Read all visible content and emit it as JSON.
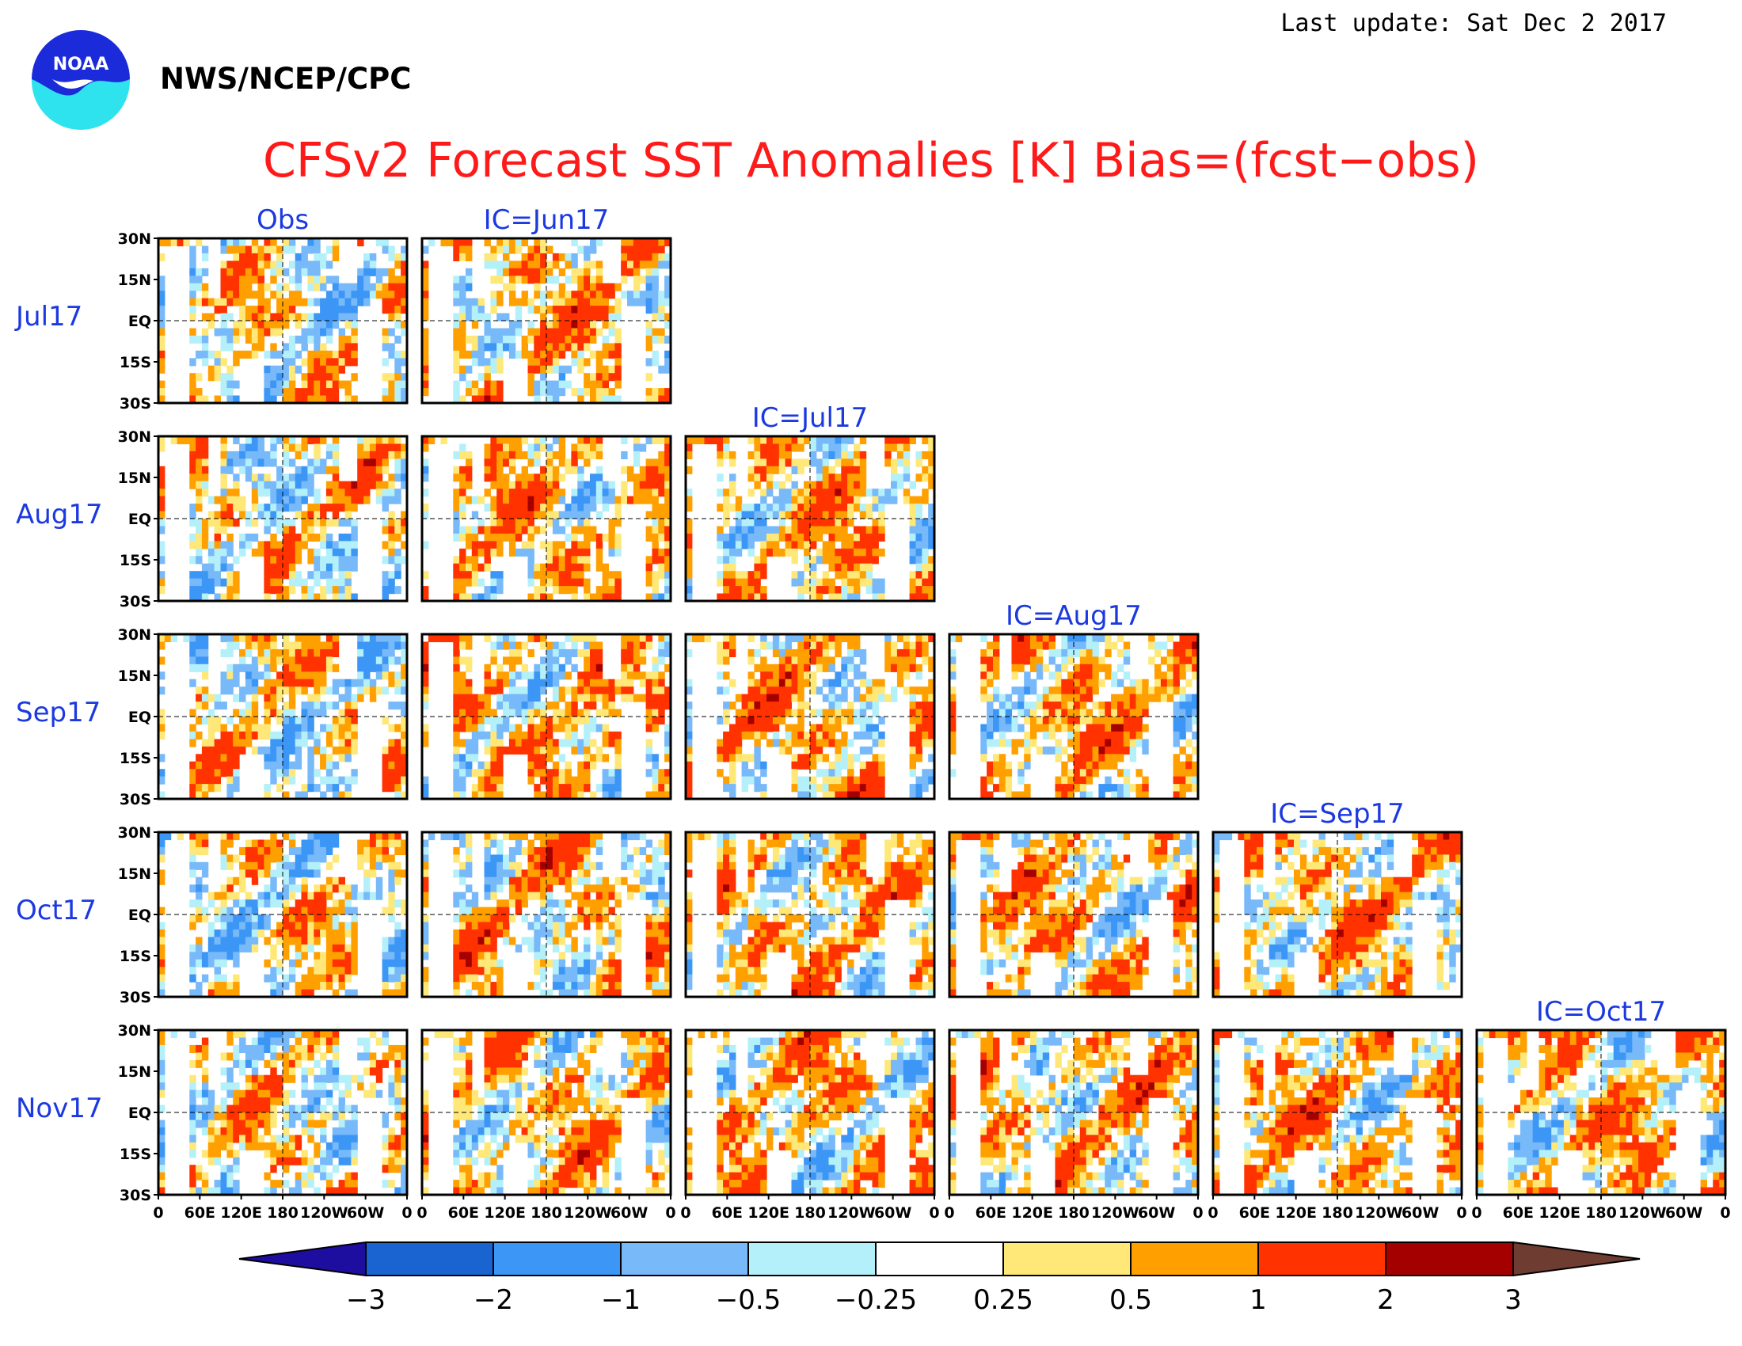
{
  "header": {
    "last_update": "Last update: Sat Dec 2 2017",
    "organization": "NWS/NCEP/CPC",
    "logo_text": "NOAA",
    "logo_icon": "noaa-logo-icon"
  },
  "chart_data": {
    "type": "heatmap",
    "title": "CFSv2 Forecast SST Anomalies [K] Bias=(fcst−obs)",
    "columns": [
      "Obs",
      "IC=Jun17",
      "IC=Jul17",
      "IC=Aug17",
      "IC=Sep17",
      "IC=Oct17"
    ],
    "rows": [
      "Jul17",
      "Aug17",
      "Sep17",
      "Oct17",
      "Nov17"
    ],
    "panel_layout": "lower-triangular: Obs column shows every target month; column for IC=Xxx17 starts at the month after the IC",
    "lat_ticks": [
      "30N",
      "15N",
      "EQ",
      "15S",
      "30S"
    ],
    "lon_ticks": [
      "0",
      "60E",
      "120E",
      "180",
      "120W",
      "60W",
      "0"
    ],
    "lat_range": [
      -30,
      30
    ],
    "lon_range": [
      0,
      360
    ],
    "colorbar": {
      "ticks": [
        "−3",
        "−2",
        "−1",
        "−0.5",
        "−0.25",
        "0.25",
        "0.5",
        "1",
        "2",
        "3"
      ],
      "tick_values": [
        -3,
        -2,
        -1,
        -0.5,
        -0.25,
        0.25,
        0.5,
        1,
        2,
        3
      ],
      "colors": [
        "#1e0ea0",
        "#1a64d2",
        "#3c96f5",
        "#78b9fa",
        "#b4f0fa",
        "#ffffff",
        "#ffe878",
        "#ffa000",
        "#ff3200",
        "#a50000",
        "#6e3c30"
      ],
      "extend": "both"
    },
    "grid": "dashed lines at EQ and 180"
  }
}
